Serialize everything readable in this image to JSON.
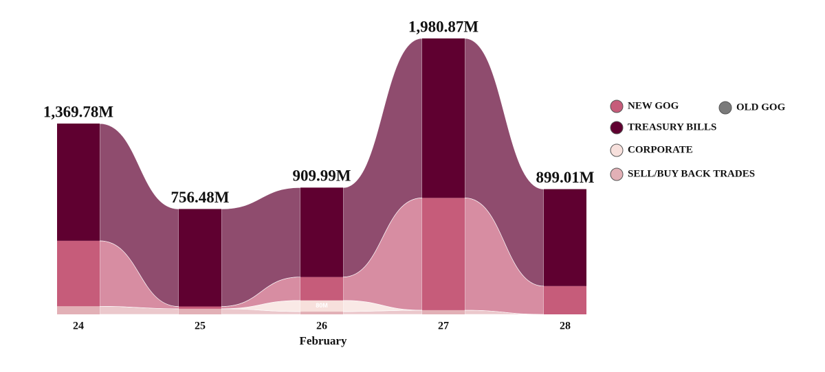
{
  "chart_data": {
    "type": "ribbon",
    "categories": [
      "24",
      "25",
      "26",
      "27",
      "28"
    ],
    "x_label": "February",
    "total_labels": [
      "1,369.78M",
      "756.48M",
      "909.99M",
      "1,980.87M",
      "899.01M"
    ],
    "series": [
      {
        "name": "SELL/BUY BACK TRADES",
        "color": "#e2b0b6",
        "values": [
          58,
          40,
          20,
          30,
          0
        ]
      },
      {
        "name": "CORPORATE",
        "color": "#f7e0dc",
        "values": [
          0,
          0,
          80,
          0,
          0
        ],
        "value_labels": [
          null,
          null,
          "80M",
          null,
          null
        ]
      },
      {
        "name": "NEW GOG",
        "color": "#c65c7a",
        "values": [
          470,
          16.48,
          168,
          806,
          203
        ]
      },
      {
        "name": "OLD GOG",
        "color": "#7a7a7a",
        "values": [
          0,
          0,
          0,
          0,
          0
        ]
      },
      {
        "name": "TREASURY BILLS",
        "color": "#5f0030",
        "values": [
          841.78,
          700,
          641.99,
          1144.87,
          696.01
        ]
      }
    ],
    "legend_position": "right"
  }
}
